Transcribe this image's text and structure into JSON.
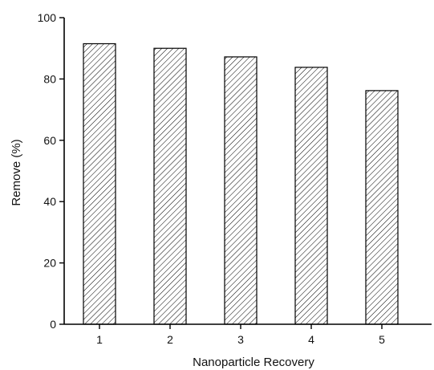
{
  "chart_data": {
    "type": "bar",
    "title": "",
    "xlabel": "Nanoparticle Recovery",
    "ylabel": "Remove (%)",
    "categories": [
      "1",
      "2",
      "3",
      "4",
      "5"
    ],
    "values": [
      91.5,
      90.0,
      87.2,
      83.8,
      76.2
    ],
    "ylim": [
      0,
      100
    ],
    "yticks": [
      "0",
      "20",
      "40",
      "60",
      "80",
      "100"
    ],
    "bar_fill": "hatched",
    "bar_color": "#ffffff",
    "edge_color": "#000000",
    "grid": false,
    "legend": "none"
  }
}
